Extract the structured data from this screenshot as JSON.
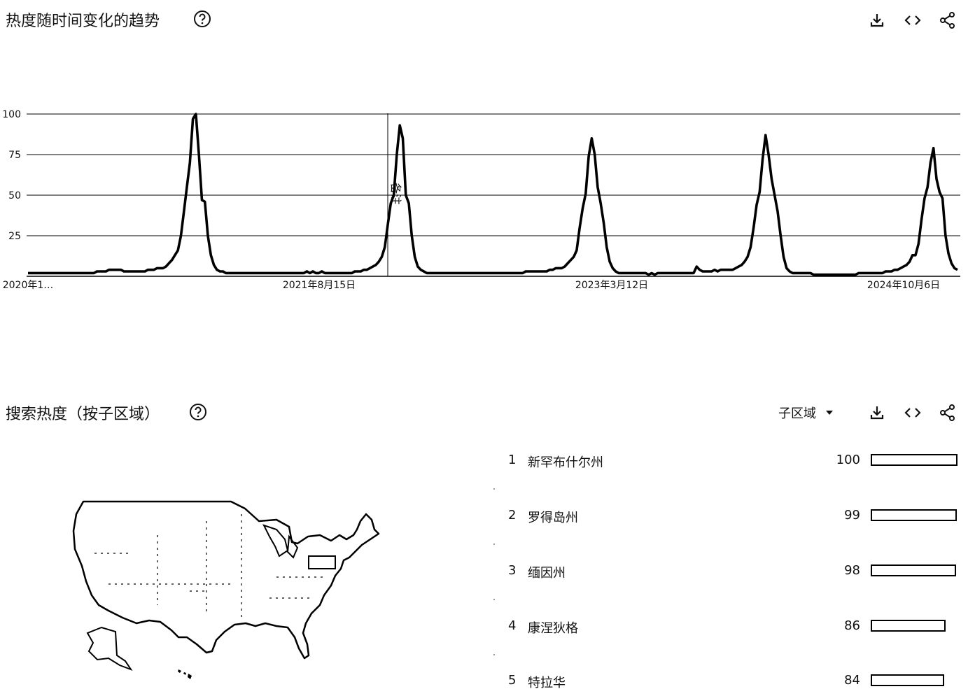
{
  "trend": {
    "title": "热度随时间变化的趋势",
    "note_label": "备注"
  },
  "region": {
    "title": "搜索热度（按子区域）",
    "select_label": "子区域",
    "rows": [
      {
        "rank": "1",
        "name": "新罕布什尔州",
        "value": "100",
        "fraction": 1.0
      },
      {
        "rank": "2",
        "name": "罗得岛州",
        "value": "99",
        "fraction": 0.99
      },
      {
        "rank": "3",
        "name": "缅因州",
        "value": "98",
        "fraction": 0.98
      },
      {
        "rank": "4",
        "name": "康涅狄格",
        "value": "86",
        "fraction": 0.86
      },
      {
        "rank": "5",
        "name": "特拉华",
        "value": "84",
        "fraction": 0.84
      }
    ]
  },
  "icons": {
    "help": "help-circle-icon",
    "download": "download-icon",
    "embed": "code-icon",
    "share": "share-icon",
    "dropdown": "caret-down-icon"
  },
  "chart_data": {
    "type": "line",
    "title": "",
    "xlabel": "",
    "ylabel": "",
    "ylim": [
      0,
      100
    ],
    "yticks": [
      "25",
      "50",
      "75",
      "100"
    ],
    "xtick_labels": [
      "2020年1…",
      "2021年8月15日",
      "2023年3月12日",
      "2024年10月6日"
    ],
    "x_start": "2020-01",
    "x_end": "2025-01",
    "grid": true,
    "series": [
      {
        "values": [
          2,
          2,
          2,
          2,
          2,
          2,
          2,
          2,
          2,
          2,
          2,
          2,
          2,
          2,
          2,
          2,
          2,
          2,
          2,
          2,
          2,
          2,
          2,
          3,
          3,
          3,
          3,
          4,
          4,
          4,
          4,
          4,
          3,
          3,
          3,
          3,
          3,
          3,
          3,
          3,
          4,
          4,
          4,
          5,
          5,
          5,
          6,
          8,
          10,
          13,
          16,
          25,
          40,
          55,
          70,
          97,
          100,
          75,
          47,
          46,
          25,
          13,
          7,
          4,
          3,
          3,
          2,
          2,
          2,
          2,
          2,
          2,
          2,
          2,
          2,
          2,
          2,
          2,
          2,
          2,
          2,
          2,
          2,
          2,
          2,
          2,
          2,
          2,
          2,
          2,
          2,
          2,
          2,
          3,
          2,
          3,
          2,
          2,
          3,
          2,
          2,
          2,
          2,
          2,
          2,
          2,
          2,
          2,
          2,
          3,
          3,
          3,
          4,
          4,
          5,
          6,
          7,
          9,
          12,
          18,
          32,
          45,
          50,
          75,
          93,
          85,
          50,
          45,
          25,
          12,
          6,
          4,
          3,
          2,
          2,
          2,
          2,
          2,
          2,
          2,
          2,
          2,
          2,
          2,
          2,
          2,
          2,
          2,
          2,
          2,
          2,
          2,
          2,
          2,
          2,
          2,
          2,
          2,
          2,
          2,
          2,
          2,
          2,
          2,
          2,
          2,
          3,
          3,
          3,
          3,
          3,
          3,
          3,
          3,
          4,
          4,
          5,
          5,
          5,
          6,
          8,
          10,
          12,
          16,
          30,
          42,
          51,
          74,
          85,
          75,
          55,
          45,
          33,
          18,
          9,
          5,
          3,
          2,
          2,
          2,
          2,
          2,
          2,
          2,
          2,
          2,
          2,
          1,
          2,
          1,
          2,
          2,
          2,
          2,
          2,
          2,
          2,
          2,
          2,
          2,
          2,
          2,
          2,
          6,
          4,
          3,
          3,
          3,
          3,
          4,
          3,
          4,
          4,
          4,
          4,
          4,
          5,
          6,
          7,
          9,
          12,
          18,
          30,
          44,
          52,
          72,
          87,
          75,
          60,
          50,
          40,
          25,
          12,
          5,
          3,
          2,
          2,
          2,
          2,
          2,
          2,
          2,
          1,
          1,
          1,
          1,
          1,
          1,
          1,
          1,
          1,
          1,
          1,
          1,
          1,
          1,
          1,
          2,
          2,
          2,
          2,
          2,
          2,
          2,
          2,
          2,
          3,
          3,
          3,
          4,
          4,
          5,
          6,
          7,
          9,
          13,
          13,
          20,
          35,
          48,
          55,
          70,
          79,
          60,
          52,
          48,
          25,
          14,
          8,
          5,
          4
        ]
      }
    ]
  }
}
